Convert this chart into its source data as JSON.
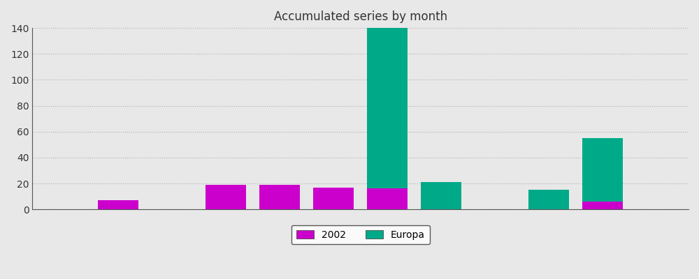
{
  "title": "Accumulated series by month",
  "n_months": 12,
  "series_2002": [
    0,
    7,
    0,
    19,
    19,
    17,
    16,
    0,
    0,
    0,
    6,
    0
  ],
  "series_europa": [
    0,
    0,
    0,
    0,
    0,
    0,
    124,
    21,
    0,
    15,
    49,
    0
  ],
  "color_2002": "#cc00cc",
  "color_europa": "#00aa88",
  "ylim": [
    0,
    140
  ],
  "yticks": [
    0,
    20,
    40,
    60,
    80,
    100,
    120,
    140
  ],
  "background_color": "#e8e8e8",
  "plot_bg_color": "#e8e8e8",
  "grid_color": "#c8c8c8",
  "title_fontsize": 12,
  "legend_labels": [
    "2002",
    "Europa"
  ],
  "bar_width": 0.75
}
